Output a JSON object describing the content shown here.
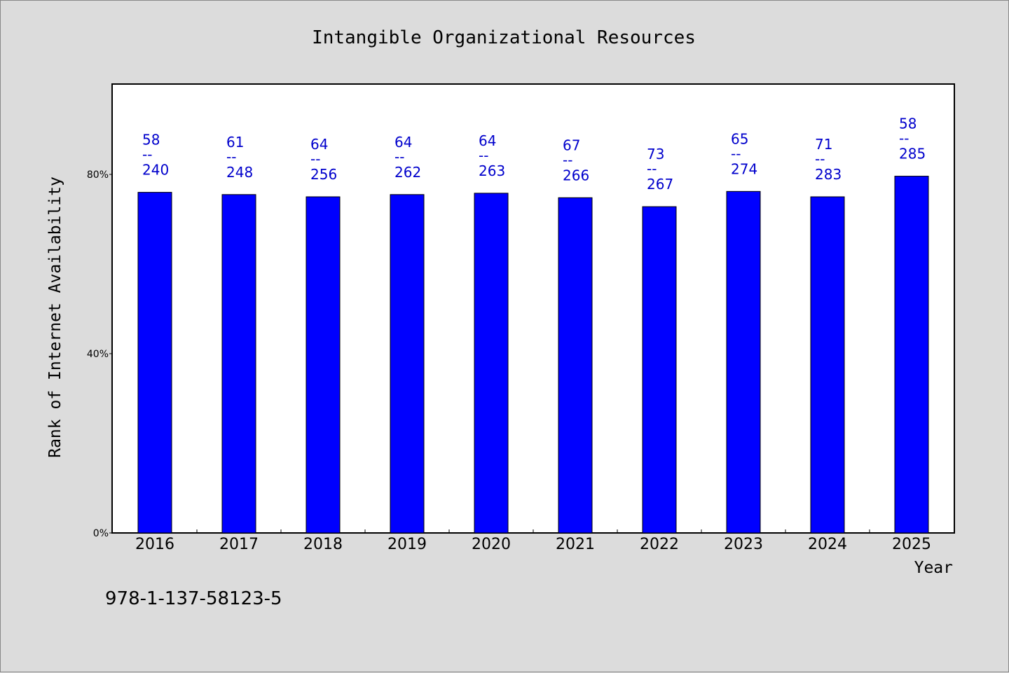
{
  "chart_data": {
    "type": "bar",
    "title": "Intangible Organizational Resources",
    "xlabel": "Year",
    "ylabel": "Rank of Internet Availability",
    "ylim": [
      0,
      100
    ],
    "yticks": [
      "0%",
      "40%",
      "80%"
    ],
    "ytick_values": [
      0,
      40,
      80
    ],
    "categories": [
      "2016",
      "2017",
      "2018",
      "2019",
      "2020",
      "2021",
      "2022",
      "2023",
      "2024",
      "2025"
    ],
    "values": [
      76,
      75.5,
      75,
      75.5,
      75.8,
      74.8,
      72.8,
      76.2,
      75,
      79.6
    ],
    "rank": [
      58,
      61,
      64,
      64,
      64,
      67,
      73,
      65,
      71,
      58
    ],
    "total": [
      240,
      248,
      256,
      262,
      263,
      266,
      267,
      274,
      283,
      285
    ],
    "label_separator": "--",
    "bar_color": "#0000ff",
    "label_color": "#0000cc",
    "grid": false
  },
  "footer": {
    "isbn": "978-1-137-58123-5"
  }
}
